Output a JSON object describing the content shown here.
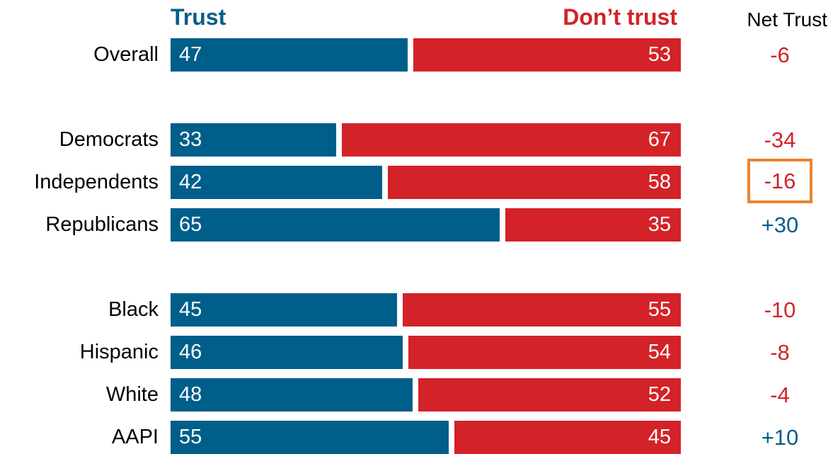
{
  "headers": {
    "trust": "Trust",
    "dont_trust": "Don’t trust",
    "net_trust": "Net Trust"
  },
  "colors": {
    "trust": "#005e8a",
    "dont_trust": "#d42229",
    "net_negative": "#d42229",
    "net_positive": "#005e8a",
    "highlight": "#e98431"
  },
  "chart_data": {
    "type": "bar",
    "orientation": "horizontal",
    "stacked": true,
    "xlim": [
      0,
      100
    ],
    "categories": [
      "Overall",
      "Democrats",
      "Independents",
      "Republicans",
      "Black",
      "Hispanic",
      "White",
      "AAPI"
    ],
    "series": [
      {
        "name": "Trust",
        "values": [
          47,
          33,
          42,
          65,
          45,
          46,
          48,
          55
        ]
      },
      {
        "name": "Don’t trust",
        "values": [
          53,
          67,
          58,
          35,
          55,
          54,
          52,
          45
        ]
      }
    ],
    "net_trust": [
      "-6",
      "-34",
      "-16",
      "+30",
      "-10",
      "-8",
      "-4",
      "+10"
    ],
    "highlighted_category": "Independents"
  }
}
